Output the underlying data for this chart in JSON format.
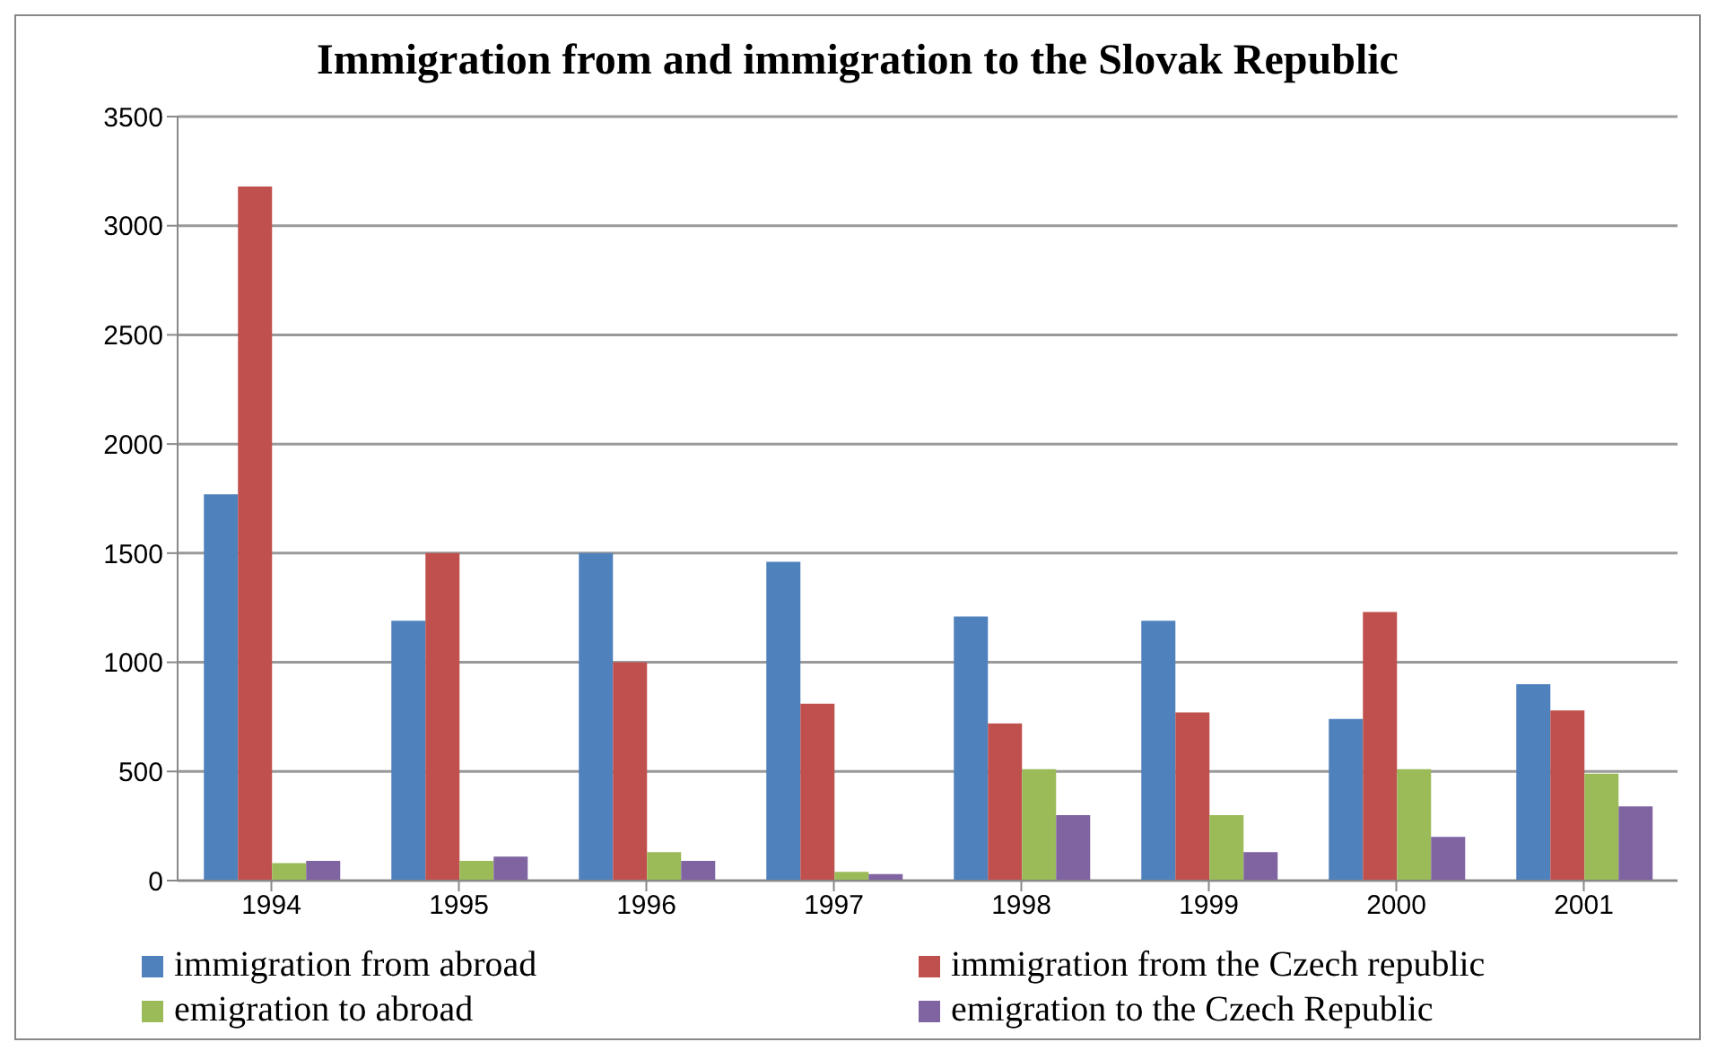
{
  "chart_data": {
    "type": "bar",
    "title": "Immigration from and immigration to the Slovak Republic",
    "categories": [
      "1994",
      "1995",
      "1996",
      "1997",
      "1998",
      "1999",
      "2000",
      "2001"
    ],
    "series": [
      {
        "name": "immigration from abroad",
        "color": "#4f81bd",
        "values": [
          1770,
          1190,
          1500,
          1460,
          1210,
          1190,
          740,
          900
        ]
      },
      {
        "name": "immigration from the Czech republic",
        "color": "#c0504d",
        "values": [
          3180,
          1500,
          1000,
          810,
          720,
          770,
          1230,
          780
        ]
      },
      {
        "name": "emigration to abroad",
        "color": "#9bbb59",
        "values": [
          80,
          90,
          130,
          40,
          510,
          300,
          510,
          490
        ]
      },
      {
        "name": "emigration to the Czech Republic",
        "color": "#8064a2",
        "values": [
          90,
          110,
          90,
          30,
          300,
          130,
          200,
          340
        ]
      }
    ],
    "ylim": [
      0,
      3500
    ],
    "yticks": [
      0,
      500,
      1000,
      1500,
      2000,
      2500,
      3000,
      3500
    ],
    "grid": "y",
    "legend": "bottom"
  }
}
